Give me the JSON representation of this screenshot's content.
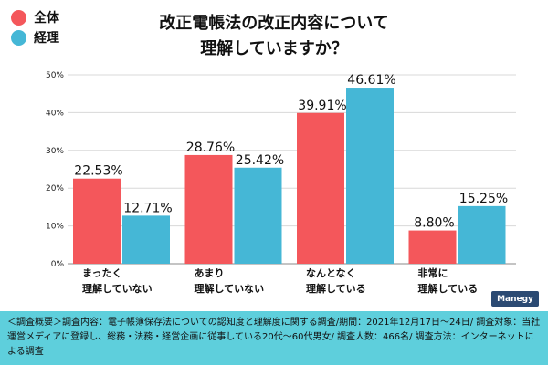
{
  "title_line1": "改正電帳法の改正内容について",
  "title_line2": "理解していますか？",
  "brand": "Manegy",
  "footer_text": "＜調査概要＞調査内容：電子帳簿保存法についての認知度と理解度に関する調査/期間：2021年12月17日〜24日/ 調査対象：当社運営メディアに登録し、総務・法務・経営企画に従事している20代〜60代男女/ 調査人数：466名/ 調査方法：インターネットによる調査",
  "colors": {
    "series1": "#f4575b",
    "series2": "#45b7d6",
    "footer": "#5ecfdc",
    "brand_bg": "#2b4a73"
  },
  "chart_data": {
    "type": "bar",
    "title": "改正電帳法の改正内容について理解していますか？",
    "xlabel": "",
    "ylabel": "",
    "ylim": [
      0,
      50
    ],
    "yticks": [
      "0%",
      "10%",
      "20%",
      "30%",
      "40%",
      "50%"
    ],
    "grid": true,
    "legend_position": "top-left",
    "categories": [
      [
        "まったく",
        "理解していない"
      ],
      [
        "あまり",
        "理解していない"
      ],
      [
        "なんとなく",
        "理解している"
      ],
      [
        "非常に",
        "理解している"
      ]
    ],
    "series": [
      {
        "name": "全体",
        "values": [
          22.53,
          28.76,
          39.91,
          8.8
        ],
        "labels": [
          "22.53%",
          "28.76%",
          "39.91%",
          "8.80%"
        ]
      },
      {
        "name": "経理",
        "values": [
          12.71,
          25.42,
          46.61,
          15.25
        ],
        "labels": [
          "12.71%",
          "25.42%",
          "46.61%",
          "15.25%"
        ]
      }
    ]
  }
}
